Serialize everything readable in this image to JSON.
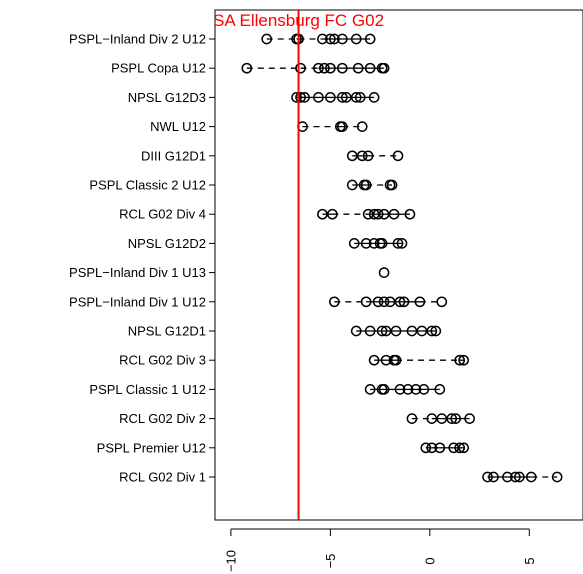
{
  "chart_data": {
    "type": "scatter",
    "title": "",
    "xlabel": "",
    "ylabel": "",
    "xlim": [
      -10.8,
      7.7
    ],
    "x_ticks": [
      -10,
      -5,
      0,
      5
    ],
    "grid": false,
    "reference_line": {
      "x": -6.6,
      "label": "SA Ellensburg FC G02",
      "color": "#ff0000"
    },
    "colors": {
      "points": "#000000",
      "reference": "#ff0000",
      "axis": "#000000"
    },
    "categories": [
      "PSPL−Inland Div 2 U12",
      "PSPL Copa U12",
      "NPSL G12D3",
      "NWL U12",
      "DIII G12D1",
      "PSPL Classic 2 U12",
      "RCL G02 Div 4",
      "NPSL G12D2",
      "PSPL−Inland Div 1 U13",
      "PSPL−Inland Div 1 U12",
      "NPSL G12D1",
      "RCL G02 Div 3",
      "PSPL Classic 1 U12",
      "RCL G02 Div 2",
      "PSPL Premier U12",
      "RCL G02 Div 1"
    ],
    "series": [
      {
        "values": [
          -8.2,
          -6.7,
          -6.6,
          -5.4,
          -5.0,
          -4.8,
          -4.4,
          -3.7,
          -3.0
        ]
      },
      {
        "values": [
          -9.2,
          -6.5,
          -5.6,
          -5.3,
          -5.0,
          -4.4,
          -3.6,
          -3.0,
          -2.4,
          -2.3
        ]
      },
      {
        "values": [
          -6.7,
          -6.5,
          -6.3,
          -5.6,
          -5.0,
          -4.4,
          -4.2,
          -3.7,
          -3.5,
          -2.8
        ]
      },
      {
        "values": [
          -6.4,
          -4.5,
          -4.4,
          -3.4
        ]
      },
      {
        "values": [
          -3.9,
          -3.4,
          -3.1,
          -1.6
        ]
      },
      {
        "values": [
          -3.9,
          -3.3,
          -3.2,
          -2.0,
          -1.9
        ]
      },
      {
        "values": [
          -5.4,
          -4.9,
          -3.1,
          -2.8,
          -2.6,
          -2.3,
          -1.8,
          -1.0
        ]
      },
      {
        "values": [
          -3.8,
          -3.2,
          -2.8,
          -2.5,
          -2.4,
          -1.6,
          -1.4
        ]
      },
      {
        "values": [
          -2.3
        ]
      },
      {
        "values": [
          -4.8,
          -3.2,
          -2.6,
          -2.3,
          -2.0,
          -1.5,
          -1.3,
          -0.5,
          0.6
        ]
      },
      {
        "values": [
          -3.7,
          -3.0,
          -2.4,
          -2.2,
          -1.7,
          -0.9,
          -0.4,
          0.1,
          0.3
        ]
      },
      {
        "values": [
          -2.8,
          -2.2,
          -1.8,
          -1.7,
          1.5,
          1.7
        ]
      },
      {
        "values": [
          -3.0,
          -2.4,
          -2.3,
          -1.5,
          -1.1,
          -0.7,
          -0.3,
          0.5
        ]
      },
      {
        "values": [
          -0.9,
          0.1,
          0.6,
          1.1,
          1.3,
          2.0
        ]
      },
      {
        "values": [
          -0.2,
          0.1,
          0.5,
          1.2,
          1.5,
          1.7
        ]
      },
      {
        "values": [
          2.9,
          3.2,
          3.9,
          4.3,
          4.5,
          5.1,
          6.4
        ]
      }
    ]
  }
}
